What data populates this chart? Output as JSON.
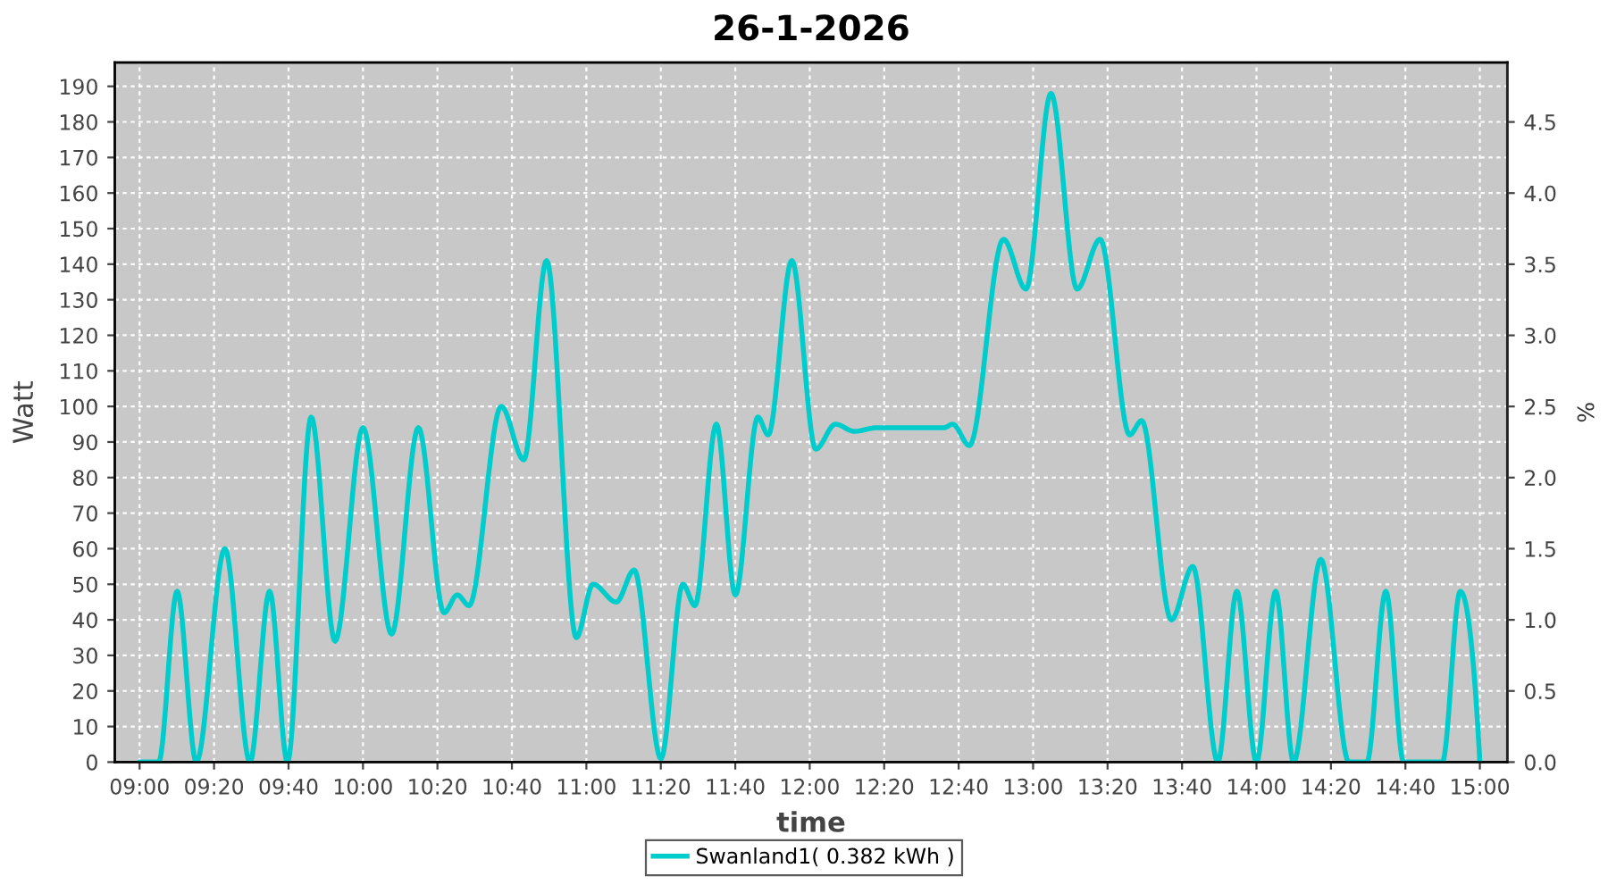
{
  "chart_data": {
    "type": "line",
    "title": "26-1-2026",
    "xlabel": "time",
    "ylabel": "Watt",
    "y2label": "%",
    "x": [
      9.0,
      9.085,
      9.168,
      9.254,
      9.382,
      9.494,
      9.582,
      9.662,
      9.768,
      9.875,
      10.0,
      10.128,
      10.248,
      10.363,
      10.422,
      10.475,
      10.619,
      10.72,
      10.822,
      10.955,
      11.03,
      11.134,
      11.214,
      11.334,
      11.432,
      11.486,
      11.582,
      11.667,
      11.768,
      11.814,
      11.92,
      12.027,
      12.115,
      12.2,
      12.3,
      12.45,
      12.6,
      12.64,
      12.715,
      12.867,
      12.968,
      13.08,
      13.197,
      13.3,
      13.432,
      13.486,
      13.619,
      13.715,
      13.827,
      13.912,
      14.0,
      14.086,
      14.166,
      14.288,
      14.414,
      14.494,
      14.579,
      14.659,
      14.832,
      14.912,
      15.0
    ],
    "series": [
      {
        "name": "Swanland1( 0.382 kWh )",
        "color": "#00cccc",
        "values": [
          0,
          0,
          48,
          0,
          60,
          0,
          48,
          0,
          97,
          34,
          94,
          36,
          94,
          42,
          47,
          44,
          100,
          85,
          141,
          35,
          50,
          45,
          54,
          1,
          50,
          44,
          95,
          47,
          97,
          92,
          141,
          88,
          95,
          93,
          94,
          94,
          94,
          95,
          89,
          147,
          133,
          188,
          133,
          147,
          92,
          96,
          40,
          55,
          0,
          48,
          0,
          48,
          0,
          57,
          0,
          0,
          48,
          0,
          0,
          48,
          0
        ]
      }
    ],
    "xlim": [
      8.889,
      15.123
    ],
    "ylim": [
      0,
      196.7
    ],
    "y2lim": [
      0,
      4.918
    ],
    "xticks": [
      {
        "value": 9.0,
        "label": "09:00"
      },
      {
        "value": 9.3333,
        "label": "09:20"
      },
      {
        "value": 9.6667,
        "label": "09:40"
      },
      {
        "value": 10.0,
        "label": "10:00"
      },
      {
        "value": 10.3333,
        "label": "10:20"
      },
      {
        "value": 10.6667,
        "label": "10:40"
      },
      {
        "value": 11.0,
        "label": "11:00"
      },
      {
        "value": 11.3333,
        "label": "11:20"
      },
      {
        "value": 11.6667,
        "label": "11:40"
      },
      {
        "value": 12.0,
        "label": "12:00"
      },
      {
        "value": 12.3333,
        "label": "12:20"
      },
      {
        "value": 12.6667,
        "label": "12:40"
      },
      {
        "value": 13.0,
        "label": "13:00"
      },
      {
        "value": 13.3333,
        "label": "13:20"
      },
      {
        "value": 13.6667,
        "label": "13:40"
      },
      {
        "value": 14.0,
        "label": "14:00"
      },
      {
        "value": 14.3333,
        "label": "14:20"
      },
      {
        "value": 14.6667,
        "label": "14:40"
      },
      {
        "value": 15.0,
        "label": "15:00"
      }
    ],
    "yticks": [
      0,
      10,
      20,
      30,
      40,
      50,
      60,
      70,
      80,
      90,
      100,
      110,
      120,
      130,
      140,
      150,
      160,
      170,
      180,
      190
    ],
    "y2ticks": [
      {
        "value": 0,
        "label": "0.0"
      },
      0.5,
      {
        "value": 1,
        "label": "1.0"
      },
      1.5,
      {
        "value": 2,
        "label": "2.0"
      },
      2.5,
      {
        "value": 3,
        "label": "3.0"
      },
      3.5,
      {
        "value": 4,
        "label": "4.0"
      },
      4.5
    ],
    "grid": true,
    "legend": "bottom",
    "line_style": "solid"
  }
}
